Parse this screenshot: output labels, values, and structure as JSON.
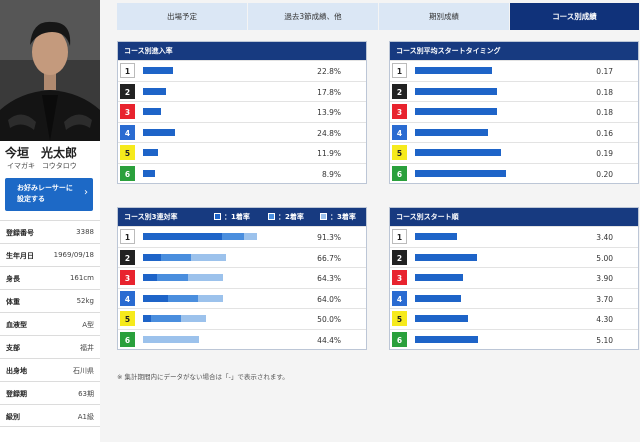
{
  "profile": {
    "name": "今垣　光太郎",
    "kana": "イマガキ　コウタロウ",
    "favorite_button": "お好みレーサーに\n設定する",
    "favorite_arrow": "›",
    "rows": [
      {
        "label": "登録番号",
        "value": "3388"
      },
      {
        "label": "生年月日",
        "value": "1969/09/18"
      },
      {
        "label": "身長",
        "value": "161cm"
      },
      {
        "label": "体重",
        "value": "52kg"
      },
      {
        "label": "血液型",
        "value": "A型"
      },
      {
        "label": "支部",
        "value": "福井"
      },
      {
        "label": "出身地",
        "value": "石川県"
      },
      {
        "label": "登録期",
        "value": "63期"
      },
      {
        "label": "級別",
        "value": "A1級"
      }
    ]
  },
  "tabs": [
    {
      "label": "出場予定",
      "active": false
    },
    {
      "label": "過去3節成績、他",
      "active": false
    },
    {
      "label": "期別成績",
      "active": false
    },
    {
      "label": "コース別成績",
      "active": true
    }
  ],
  "colors": {
    "bar": "#1e64c8",
    "bar_second": "#4a8ede",
    "bar_third": "#9cc2ec",
    "header": "#173a80",
    "lanes": [
      {
        "bg": "#ffffff",
        "fg": "#222222",
        "border": "#bbbbbb"
      },
      {
        "bg": "#222222",
        "fg": "#ffffff",
        "border": "#222222"
      },
      {
        "bg": "#e8232e",
        "fg": "#ffffff",
        "border": "#e8232e"
      },
      {
        "bg": "#2a6bd1",
        "fg": "#ffffff",
        "border": "#2a6bd1"
      },
      {
        "bg": "#f6ea1c",
        "fg": "#222222",
        "border": "#f6ea1c"
      },
      {
        "bg": "#2aa03c",
        "fg": "#ffffff",
        "border": "#2aa03c"
      }
    ]
  },
  "chart_data": [
    {
      "type": "bar",
      "title": "コース別進入率",
      "categories": [
        "1",
        "2",
        "3",
        "4",
        "5",
        "6"
      ],
      "values": [
        22.8,
        17.8,
        13.9,
        24.8,
        11.9,
        8.9
      ],
      "labels": [
        "22.8%",
        "17.8%",
        "13.9%",
        "24.8%",
        "11.9%",
        "8.9%"
      ],
      "xlim": [
        0,
        100
      ]
    },
    {
      "type": "bar",
      "title": "コース別平均スタートタイミング",
      "categories": [
        "1",
        "2",
        "3",
        "4",
        "5",
        "6"
      ],
      "values": [
        0.17,
        0.18,
        0.18,
        0.16,
        0.19,
        0.2
      ],
      "labels": [
        "0.17",
        "0.18",
        "0.18",
        "0.16",
        "0.19",
        "0.20"
      ]
    },
    {
      "type": "bar",
      "title": "コース別3連対率",
      "legend": [
        "：1着率",
        "：2着率",
        "：3着率"
      ],
      "categories": [
        "1",
        "2",
        "3",
        "4",
        "5",
        "6"
      ],
      "series": [
        {
          "name": "1着率",
          "values": [
            63.0,
            14.0,
            11.0,
            20.0,
            6.5,
            0.0
          ]
        },
        {
          "name": "2着率",
          "values": [
            18.0,
            24.0,
            25.0,
            24.0,
            24.0,
            0.0
          ]
        },
        {
          "name": "3着率",
          "values": [
            10.3,
            28.7,
            28.3,
            20.0,
            19.5,
            44.4
          ]
        }
      ],
      "labels": [
        "91.3%",
        "66.7%",
        "64.3%",
        "64.0%",
        "50.0%",
        "44.4%"
      ],
      "xlim": [
        0,
        100
      ]
    },
    {
      "type": "bar",
      "title": "コース別スタート順",
      "categories": [
        "1",
        "2",
        "3",
        "4",
        "5",
        "6"
      ],
      "values": [
        3.4,
        5.0,
        3.9,
        3.7,
        4.3,
        5.1
      ],
      "labels": [
        "3.40",
        "5.00",
        "3.90",
        "3.70",
        "4.30",
        "5.10"
      ]
    }
  ],
  "note": "※ 集計期間内にデータがない場合は「-」で表示されます。"
}
